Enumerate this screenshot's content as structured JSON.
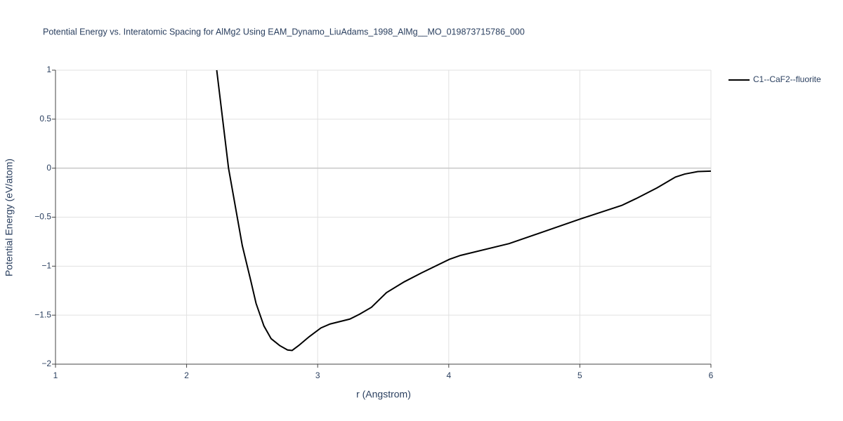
{
  "chart_data": {
    "type": "line",
    "title": "Potential Energy vs. Interatomic Spacing for AlMg2 Using EAM_Dynamo_LiuAdams_1998_AlMg__MO_019873715786_000",
    "x_label": "r (Angstrom)",
    "y_label": "Potential Energy (eV/atom)",
    "xlim": [
      1,
      6
    ],
    "xticks": [
      1,
      2,
      3,
      4,
      5,
      6
    ],
    "ylim": [
      -2,
      1
    ],
    "yticks": [
      {
        "value": -2,
        "label": "−2"
      },
      {
        "value": -1.5,
        "label": "−1.5"
      },
      {
        "value": -1,
        "label": "−1"
      },
      {
        "value": -0.5,
        "label": "−0.5"
      },
      0,
      0.5,
      1
    ],
    "grid": true,
    "legend": "right",
    "series": [
      {
        "name": "C1--CaF2--fluorite",
        "color": "#000000",
        "x": [
          2.23,
          2.32,
          2.425,
          2.49,
          2.53,
          2.59,
          2.645,
          2.71,
          2.77,
          2.805,
          2.855,
          2.935,
          3.025,
          3.095,
          3.245,
          3.32,
          3.41,
          3.525,
          3.66,
          3.79,
          4.005,
          4.09,
          4.46,
          5.0,
          5.32,
          5.43,
          5.59,
          5.73,
          5.8,
          5.9,
          6.0
        ],
        "values": [
          1,
          0,
          -0.79,
          -1.15,
          -1.38,
          -1.61,
          -1.74,
          -1.81,
          -1.855,
          -1.86,
          -1.81,
          -1.72,
          -1.63,
          -1.59,
          -1.54,
          -1.49,
          -1.42,
          -1.27,
          -1.16,
          -1.07,
          -0.93,
          -0.89,
          -0.77,
          -0.52,
          -0.38,
          -0.31,
          -0.2,
          -0.09,
          -0.06,
          -0.035,
          -0.03
        ]
      }
    ]
  }
}
